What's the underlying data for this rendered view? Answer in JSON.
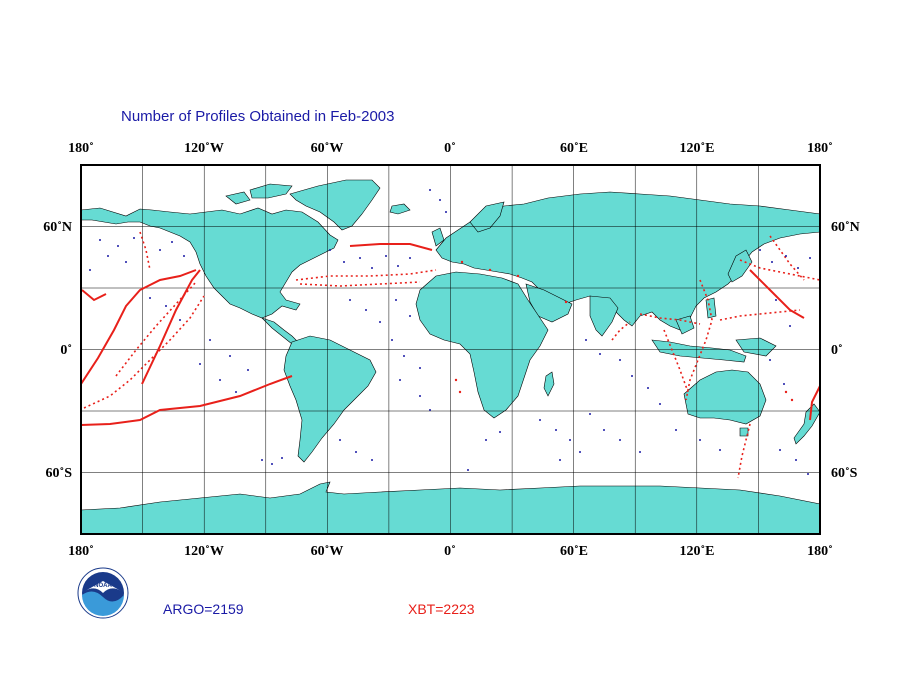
{
  "title": "Number of Profiles Obtained in Feb-2003",
  "counts": {
    "argo": "ARGO=2159",
    "xbt": "XBT=2223"
  },
  "logo": {
    "name": "noaa-logo",
    "text": "NOAA",
    "ring_text": "NATIONAL OCEANIC AND ATMOSPHERIC ADMINISTRATION · U.S. DEPARTMENT OF COMMERCE"
  },
  "axes": {
    "longitude_ticks": [
      "180˚",
      "120˚W",
      "60˚W",
      "0˚",
      "60˚E",
      "120˚E",
      "180˚"
    ],
    "latitude_ticks": [
      "60˚N",
      "0˚",
      "60˚S"
    ]
  },
  "colors": {
    "land": "#66dbd3",
    "argo": "#1a1aa6",
    "xbt": "#e8201a",
    "grid": "#000000"
  }
}
